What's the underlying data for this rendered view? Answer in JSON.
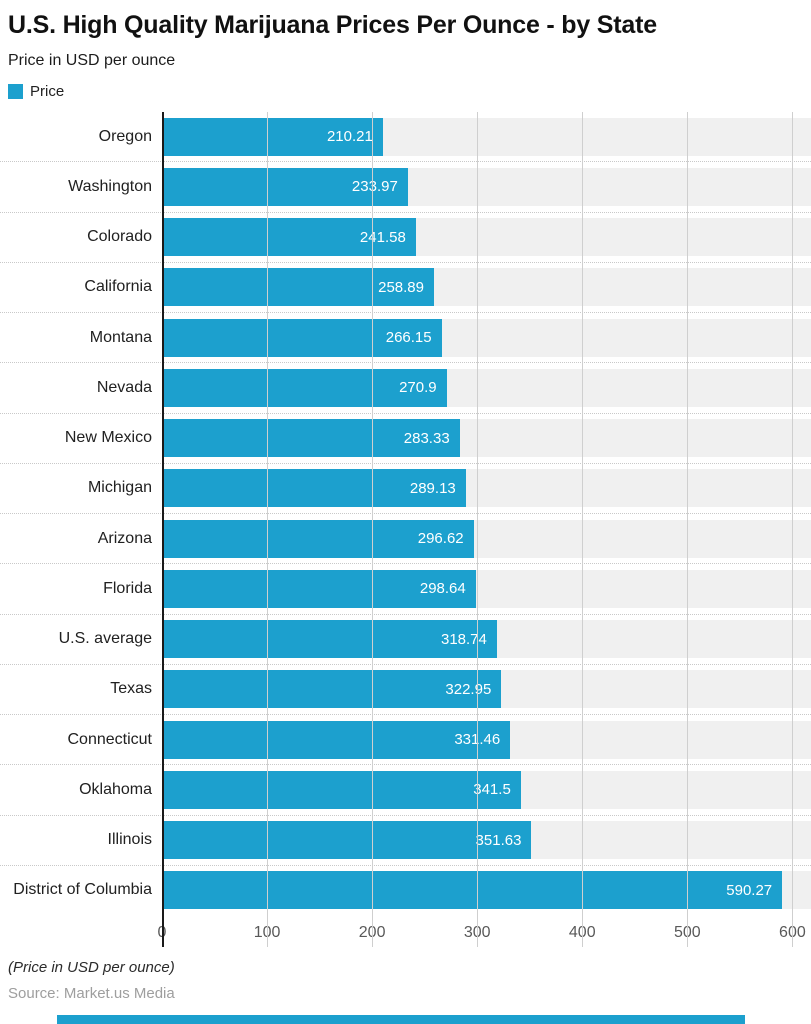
{
  "header": {
    "title": "U.S. High Quality Marijuana Prices Per Ounce - by State",
    "subtitle": "Price in USD per ounce",
    "legend": {
      "label": "Price",
      "color": "#1ca0ce"
    }
  },
  "chart_data": {
    "type": "bar",
    "orientation": "horizontal",
    "title": "U.S. High Quality Marijuana Prices Per Ounce - by State",
    "subtitle": "Price in USD per ounce",
    "xlabel": "",
    "ylabel": "",
    "categories": [
      "Oregon",
      "Washington",
      "Colorado",
      "California",
      "Montana",
      "Nevada",
      "New Mexico",
      "Michigan",
      "Arizona",
      "Florida",
      "U.S. average",
      "Texas",
      "Connecticut",
      "Oklahoma",
      "Illinois",
      "District of Columbia"
    ],
    "series": [
      {
        "name": "Price",
        "values": [
          210.21,
          233.97,
          241.58,
          258.89,
          266.15,
          270.9,
          283.33,
          289.13,
          296.62,
          298.64,
          318.74,
          322.95,
          331.46,
          341.5,
          351.63,
          590.27
        ],
        "value_labels": [
          "210.21",
          "233.97",
          "241.58",
          "258.89",
          "266.15",
          "270.9",
          "283.33",
          "289.13",
          "296.62",
          "298.64",
          "318.74",
          "322.95",
          "331.46",
          "341.5",
          "351.63",
          "590.27"
        ]
      }
    ],
    "xlim": [
      0,
      612
    ],
    "x_ticks": [
      0,
      100,
      200,
      300,
      400,
      500,
      600
    ],
    "grid": "vertical-gridlines-on",
    "legend_position": "top-left",
    "value_labels_position": "inside-end",
    "colors": {
      "bar": "#1ca0ce",
      "row_band": "#f0f0f0",
      "gridline": "#cfcfcf",
      "axis_line": "#1a1a1a",
      "category_label": "#212121",
      "tick_label": "#595959",
      "value_label": "#ffffff"
    }
  },
  "footer": {
    "note": "(Price in USD per ounce)",
    "source": "Source: Market.us Media"
  }
}
